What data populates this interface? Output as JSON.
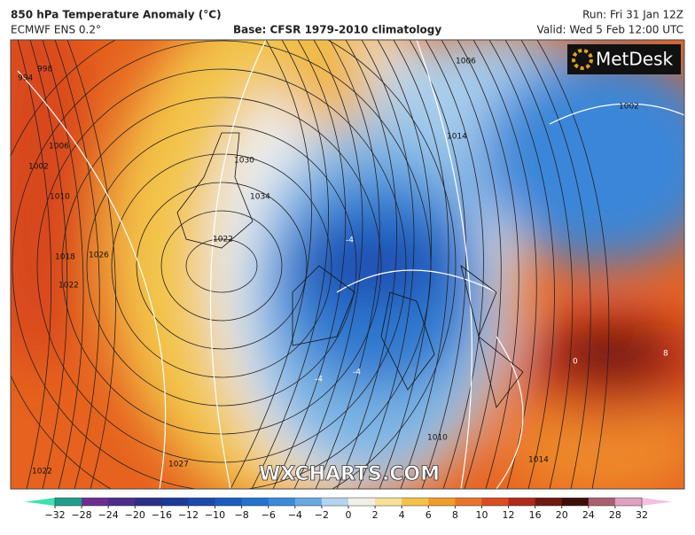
{
  "header": {
    "title": "850 hPa Temperature Anomaly (°C)",
    "model": "ECMWF ENS 0.2°",
    "base": "Base: CFSR 1979-2010 climatology",
    "run": "Run: Fri 31 Jan 12Z",
    "valid": "Valid: Wed 5 Feb 12:00 UTC"
  },
  "logo": "MetDesk",
  "watermark": "WXCHARTS.COM",
  "isobar_labels": [
    994,
    998,
    1002,
    1006,
    1010,
    1018,
    1022,
    1026,
    1030,
    1034,
    1022,
    1006,
    1014,
    1002,
    1010,
    1014,
    1027,
    1022
  ],
  "isotherm_labels": [
    {
      "value": -4,
      "label": "-4"
    },
    {
      "value": -4,
      "label": "-4"
    },
    {
      "value": -4,
      "label": "-4"
    },
    8,
    0
  ],
  "colorbar": {
    "ticks": [
      {
        "value": -32,
        "label": "−32"
      },
      {
        "value": -28,
        "label": "−28"
      },
      {
        "value": -24,
        "label": "−24"
      },
      {
        "value": -20,
        "label": "−20"
      },
      {
        "value": -16,
        "label": "−16"
      },
      {
        "value": -12,
        "label": "−12"
      },
      {
        "value": -10,
        "label": "−10"
      },
      {
        "value": -8,
        "label": "−8"
      },
      {
        "value": -6,
        "label": "−6"
      },
      {
        "value": -4,
        "label": "−4"
      },
      {
        "value": -2,
        "label": "−2"
      },
      0,
      2,
      4,
      6,
      8,
      10,
      12,
      16,
      20,
      24,
      28,
      32
    ],
    "colors": [
      "#1f9e89",
      "#6b2f8e",
      "#4b2d8a",
      "#2c2f86",
      "#1d3a96",
      "#1a4aaa",
      "#1c5cbc",
      "#2472cc",
      "#3a8ad8",
      "#6aa8e2",
      "#b4d4ee",
      "#f2f0e6",
      "#f6e09a",
      "#f4c24a",
      "#ee9c2c",
      "#e8742a",
      "#d84c22",
      "#b02a1a",
      "#6e1a10",
      "#3e0e08",
      "#a86070",
      "#e0a0c0"
    ],
    "under_color": "#40e0b0",
    "over_color": "#f4c0e0"
  }
}
